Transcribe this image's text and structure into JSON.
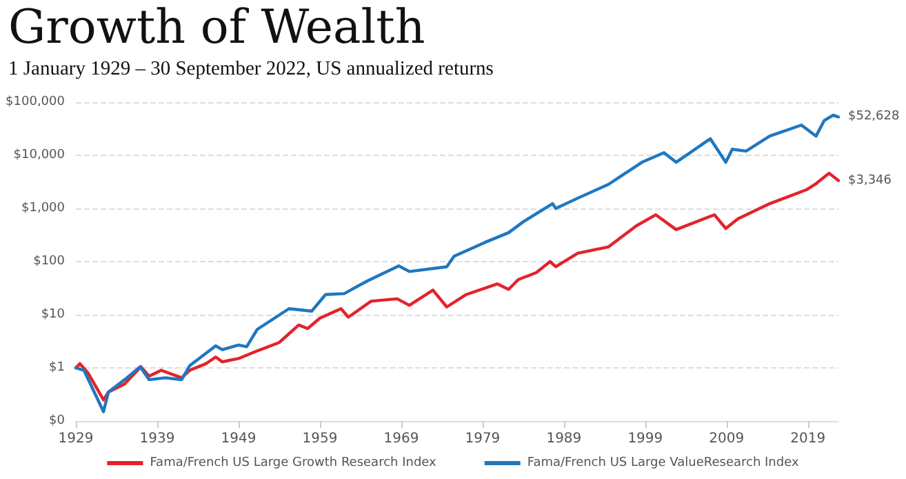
{
  "chart_data": {
    "type": "line",
    "title": "Growth of Wealth",
    "subtitle": "1 January 1929 – 30 September 2022, US annualized returns",
    "series": [
      {
        "name": "Fama/French US Large Growth Research Index",
        "color": "#e3232b",
        "x": [
          1929,
          1929.5,
          1930.5,
          1932.4,
          1933,
          1935,
          1937,
          1938,
          1939.5,
          1942,
          1943,
          1945,
          1946.2,
          1947,
          1949,
          1951,
          1954,
          1956.4,
          1957.5,
          1959,
          1961.6,
          1962.5,
          1965.3,
          1968.5,
          1970,
          1972.9,
          1974.6,
          1977,
          1980.8,
          1982.2,
          1983.4,
          1985.6,
          1987.3,
          1988,
          1990.7,
          1994.5,
          1997.9,
          2000.3,
          2002.8,
          2007.5,
          2008.9,
          2010.4,
          2014.3,
          2018.8,
          2019.9,
          2021.6,
          2022.75
        ],
        "values": [
          1,
          1.2,
          0.8,
          0.25,
          0.35,
          0.5,
          1.05,
          0.7,
          0.9,
          0.65,
          0.9,
          1.2,
          1.6,
          1.3,
          1.5,
          2,
          3,
          6.4,
          5.5,
          8.6,
          13,
          9,
          18,
          20,
          15,
          29,
          14,
          24,
          38,
          30,
          46,
          62,
          100,
          80,
          144,
          190,
          470,
          760,
          400,
          760,
          420,
          640,
          1230,
          2240,
          2850,
          4600,
          3346
        ]
      },
      {
        "name": "Fama/French US Large ValueResearch Index",
        "color": "#1f77c0",
        "x": [
          1929,
          1930,
          1932.4,
          1933,
          1935,
          1936.9,
          1938,
          1940,
          1942,
          1943,
          1946.2,
          1947,
          1949,
          1950,
          1951.3,
          1955.2,
          1958,
          1959.7,
          1962,
          1964.8,
          1968.7,
          1970,
          1974.6,
          1975.5,
          1979.3,
          1982.2,
          1984,
          1987.6,
          1988,
          1990.7,
          1994.5,
          1998.6,
          2001.3,
          2002.8,
          2007,
          2008.9,
          2009.7,
          2011.4,
          2014.3,
          2018.2,
          2020,
          2021,
          2022.1,
          2022.75
        ],
        "values": [
          1,
          0.9,
          0.15,
          0.35,
          0.6,
          1.05,
          0.6,
          0.65,
          0.6,
          1.1,
          2.6,
          2.2,
          2.7,
          2.5,
          5.3,
          13,
          11.7,
          24,
          25,
          43,
          83,
          65,
          80,
          126,
          230,
          350,
          560,
          1230,
          1000,
          1560,
          2850,
          7400,
          11200,
          7400,
          20500,
          7400,
          13000,
          12000,
          23000,
          37000,
          23000,
          45000,
          57000,
          52628
        ]
      }
    ],
    "annotations": [
      {
        "text": "$52,628",
        "x": 2022.75,
        "y": 52628
      },
      {
        "text": "$3,346",
        "x": 2022.75,
        "y": 3346
      }
    ],
    "xlim": [
      1929,
      2022.75
    ],
    "xticks": [
      1929,
      1939,
      1949,
      1959,
      1969,
      1979,
      1989,
      1999,
      2009,
      2019
    ],
    "ylim": [
      0.1,
      100000
    ],
    "yticks": [
      {
        "value": 0.1,
        "label": "$0"
      },
      {
        "value": 1,
        "label": "$1"
      },
      {
        "value": 10,
        "label": "$10"
      },
      {
        "value": 100,
        "label": "$100"
      },
      {
        "value": 1000,
        "label": "$1,000"
      },
      {
        "value": 10000,
        "label": "$10,000"
      },
      {
        "value": 100000,
        "label": "$100,000"
      }
    ],
    "log": "y",
    "grid": "y",
    "legend": "bottom",
    "marker": "none",
    "line_style": "solid"
  }
}
